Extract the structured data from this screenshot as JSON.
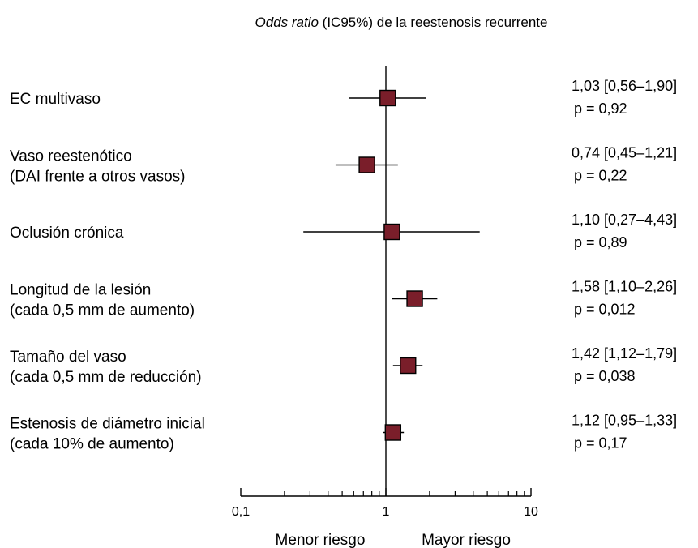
{
  "chart_data": {
    "type": "forest",
    "title_italic": "Odds ratio",
    "title_rest": " (IC95%) de la reestenosis recurrente",
    "x_scale": "log",
    "xlim": [
      0.1,
      10
    ],
    "reference_line": 1,
    "x_tick_labels": [
      {
        "value": 0.1,
        "label": "0,1"
      },
      {
        "value": 1,
        "label": "1"
      },
      {
        "value": 10,
        "label": "10"
      }
    ],
    "x_minor_ticks": [
      0.2,
      0.3,
      0.4,
      0.5,
      0.6,
      0.7,
      0.8,
      0.9,
      2,
      3,
      4,
      5,
      6,
      7,
      8,
      9
    ],
    "lower_label": "Menor riesgo",
    "higher_label": "Mayor riesgo",
    "marker_color": "#7a1e2a",
    "rows": [
      {
        "label": [
          "EC multivaso"
        ],
        "or": 1.03,
        "lo": 0.56,
        "hi": 1.9,
        "ci_text": "1,03 [0,56–1,90]",
        "p_text": "p = 0,92"
      },
      {
        "label": [
          "Vaso reestenótico",
          "(DAI frente a otros vasos)"
        ],
        "or": 0.74,
        "lo": 0.45,
        "hi": 1.21,
        "ci_text": "0,74 [0,45–1,21]",
        "p_text": "p = 0,22"
      },
      {
        "label": [
          "Oclusión crónica"
        ],
        "or": 1.1,
        "lo": 0.27,
        "hi": 4.43,
        "ci_text": "1,10 [0,27–4,43]",
        "p_text": "p = 0,89"
      },
      {
        "label": [
          "Longitud de la lesión",
          "(cada 0,5 mm de aumento)"
        ],
        "or": 1.58,
        "lo": 1.1,
        "hi": 2.26,
        "ci_text": "1,58 [1,10–2,26]",
        "p_text": "p = 0,012"
      },
      {
        "label": [
          "Tamaño del vaso",
          "(cada 0,5 mm de reducción)"
        ],
        "or": 1.42,
        "lo": 1.12,
        "hi": 1.79,
        "ci_text": "1,42 [1,12–1,79]",
        "p_text": "p = 0,038"
      },
      {
        "label": [
          "Estenosis de diámetro inicial",
          "(cada 10% de aumento)"
        ],
        "or": 1.12,
        "lo": 0.95,
        "hi": 1.33,
        "ci_text": "1,12 [0,95–1,33]",
        "p_text": "p = 0,17"
      }
    ]
  }
}
